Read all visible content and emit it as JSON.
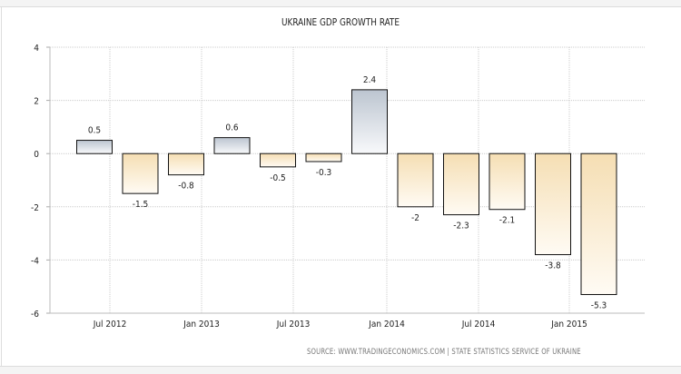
{
  "chart_data": {
    "type": "bar",
    "title": "UKRAINE GDP GROWTH RATE",
    "source": "SOURCE:  WWW.TRADINGECONOMICS.COM  |  STATE  STATISTICS  SERVICE  OF  UKRAINE",
    "x": [
      "2012-06",
      "2012-09",
      "2012-12",
      "2013-03",
      "2013-06",
      "2013-09",
      "2013-12",
      "2014-03",
      "2014-06",
      "2014-09",
      "2014-12",
      "2015-03"
    ],
    "values": [
      0.5,
      -1.5,
      -0.8,
      0.6,
      -0.5,
      -0.3,
      2.4,
      -2,
      -2.3,
      -2.1,
      -3.8,
      -5.3
    ],
    "data_labels": [
      "0.5",
      "-1.5",
      "-0.8",
      "0.6",
      "-0.5",
      "-0.3",
      "2.4",
      "-2",
      "-2.3",
      "-2.1",
      "-3.8",
      "-5.3"
    ],
    "xticks": [
      "Jul 2012",
      "Jan 2013",
      "Jul 2013",
      "Jan 2014",
      "Jul 2014",
      "Jan 2015"
    ],
    "yticks": [
      "4",
      "2",
      "0",
      "-2",
      "-4",
      "-6"
    ],
    "ylim": [
      -6,
      4
    ],
    "xlabel": "",
    "ylabel": "",
    "grid": true,
    "colors": {
      "positive_top": "#bcc5d0",
      "positive_bottom": "#f8f9fb",
      "negative_top": "#f5deb3",
      "negative_bottom": "#fffbf4"
    }
  }
}
